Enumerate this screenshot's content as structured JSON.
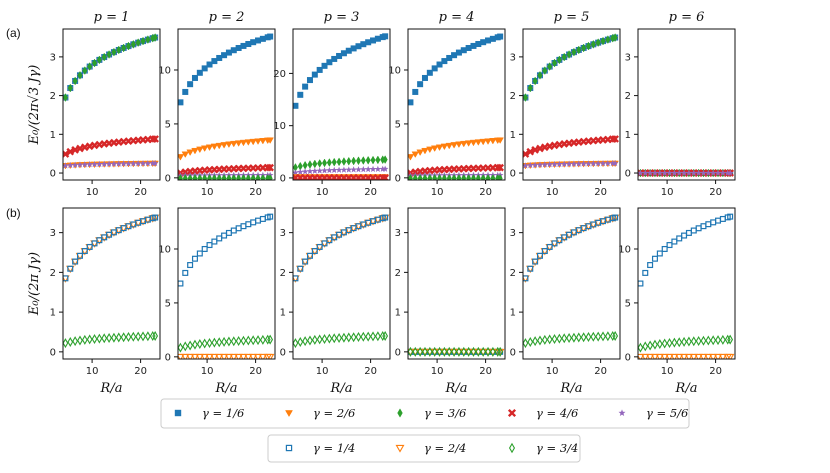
{
  "chart_data": {
    "type": "scatter",
    "row_labels": [
      "(a)",
      "(b)"
    ],
    "ylabels": [
      "E₀/(2π√3 Jγ)",
      "E₀/(2π Jγ)"
    ],
    "xlabel": "R/a",
    "x_range": [
      4,
      24
    ],
    "xticks": [
      10,
      20
    ],
    "styles": {
      "1/6": {
        "label": "γ = 1/6",
        "color": "#1f77b4",
        "marker": "square-filled"
      },
      "2/6": {
        "label": "γ = 2/6",
        "color": "#ff7f0e",
        "marker": "triangle-down-filled"
      },
      "3/6": {
        "label": "γ = 3/6",
        "color": "#2ca02c",
        "marker": "diamond-filled"
      },
      "4/6": {
        "label": "γ = 4/6",
        "color": "#d62728",
        "marker": "x-filled"
      },
      "5/6": {
        "label": "γ = 5/6",
        "color": "#9467bd",
        "marker": "star"
      },
      "1/4": {
        "label": "γ = 1/4",
        "color": "#1f77b4",
        "marker": "square-open"
      },
      "2/4": {
        "label": "γ = 2/4",
        "color": "#ff7f0e",
        "marker": "triangle-down-open"
      },
      "3/4": {
        "label": "γ = 3/4",
        "color": "#2ca02c",
        "marker": "diamond-open"
      }
    },
    "legend_rows": [
      [
        "1/6",
        "2/6",
        "3/6",
        "4/6",
        "5/6"
      ],
      [
        "1/4",
        "2/4",
        "3/4"
      ]
    ],
    "x": [
      4.5,
      5.5,
      6.5,
      7.5,
      8.5,
      9.5,
      10.5,
      11.5,
      12.5,
      13.5,
      14.5,
      15.5,
      16.5,
      17.5,
      18.5,
      19.5,
      20.5,
      21.5,
      22.5,
      23
    ],
    "shape": "logarithmic",
    "panels": [
      {
        "row": 0,
        "title": "p = 1",
        "ylim": [
          -0.18,
          3.72
        ],
        "yticks": [
          0,
          1,
          2,
          3
        ],
        "series": [
          {
            "gamma": "1/6",
            "y0": 1.95,
            "y1": 3.5
          },
          {
            "gamma": "5/6",
            "y0": 1.95,
            "y1": 3.5
          },
          {
            "gamma": "3/6",
            "y0": 1.95,
            "y1": 3.5
          },
          {
            "gamma": "4/6",
            "y0": 0.49,
            "y1": 0.88
          },
          {
            "gamma": "2/6",
            "y0": 0.19,
            "y1": 0.25
          },
          {
            "gamma": "5/6",
            "y0": 0.19,
            "y1": 0.25
          }
        ]
      },
      {
        "row": 0,
        "title": "p = 2",
        "ylim": [
          -0.2,
          13.8
        ],
        "yticks": [
          0,
          5,
          10
        ],
        "series": [
          {
            "gamma": "1/6",
            "y0": 7.0,
            "y1": 13.1
          },
          {
            "gamma": "2/6",
            "y0": 1.95,
            "y1": 3.5
          },
          {
            "gamma": "4/6",
            "y0": 0.45,
            "y1": 0.95
          },
          {
            "gamma": "5/6",
            "y0": 0.2,
            "y1": 0.25
          },
          {
            "gamma": "3/6",
            "y0": -0.05,
            "y1": -0.05
          }
        ]
      },
      {
        "row": 0,
        "title": "p = 3",
        "ylim": [
          -0.4,
          28.5
        ],
        "yticks": [
          0,
          10,
          20
        ],
        "series": [
          {
            "gamma": "1/6",
            "y0": 13.8,
            "y1": 27.1
          },
          {
            "gamma": "3/6",
            "y0": 2.0,
            "y1": 3.5
          },
          {
            "gamma": "5/6",
            "y0": 1.0,
            "y1": 1.7
          },
          {
            "gamma": "2/6",
            "y0": 0.2,
            "y1": 0.2
          },
          {
            "gamma": "4/6",
            "y0": 0.0,
            "y1": 0.0
          }
        ]
      },
      {
        "row": 0,
        "title": "p = 4",
        "ylim": [
          -0.2,
          13.8
        ],
        "yticks": [
          0,
          5,
          10
        ],
        "series": [
          {
            "gamma": "1/6",
            "y0": 7.0,
            "y1": 13.1
          },
          {
            "gamma": "2/6",
            "y0": 1.95,
            "y1": 3.5
          },
          {
            "gamma": "4/6",
            "y0": 0.45,
            "y1": 0.95
          },
          {
            "gamma": "5/6",
            "y0": 0.2,
            "y1": 0.25
          },
          {
            "gamma": "3/6",
            "y0": -0.05,
            "y1": -0.05
          }
        ]
      },
      {
        "row": 0,
        "title": "p = 5",
        "ylim": [
          -0.18,
          3.72
        ],
        "yticks": [
          0,
          1,
          2,
          3
        ],
        "series": [
          {
            "gamma": "1/6",
            "y0": 1.95,
            "y1": 3.5
          },
          {
            "gamma": "5/6",
            "y0": 1.95,
            "y1": 3.5
          },
          {
            "gamma": "3/6",
            "y0": 1.95,
            "y1": 3.5
          },
          {
            "gamma": "4/6",
            "y0": 0.49,
            "y1": 0.88
          },
          {
            "gamma": "2/6",
            "y0": 0.19,
            "y1": 0.25
          },
          {
            "gamma": "5/6",
            "y0": 0.19,
            "y1": 0.25
          }
        ]
      },
      {
        "row": 0,
        "title": "p = 6",
        "ylim": [
          -0.18,
          3.72
        ],
        "yticks": [
          0,
          1,
          2,
          3
        ],
        "series": [
          {
            "gamma": "1/6",
            "y0": 0.0,
            "y1": 0.0
          },
          {
            "gamma": "2/6",
            "y0": 0.0,
            "y1": 0.0
          },
          {
            "gamma": "3/6",
            "y0": 0.0,
            "y1": 0.0
          },
          {
            "gamma": "4/6",
            "y0": 0.0,
            "y1": 0.0
          },
          {
            "gamma": "5/6",
            "y0": 0.0,
            "y1": 0.0
          }
        ]
      },
      {
        "row": 1,
        "title": "",
        "ylim": [
          -0.18,
          3.62
        ],
        "yticks": [
          0,
          1,
          2,
          3
        ],
        "series": [
          {
            "gamma": "2/4",
            "y0": 1.85,
            "y1": 3.38
          },
          {
            "gamma": "1/4",
            "y0": 1.85,
            "y1": 3.38
          },
          {
            "gamma": "3/4",
            "y0": 0.22,
            "y1": 0.4
          }
        ]
      },
      {
        "row": 1,
        "title": "",
        "ylim": [
          -0.2,
          13.8
        ],
        "yticks": [
          0,
          5,
          10
        ],
        "series": [
          {
            "gamma": "1/4",
            "y0": 6.8,
            "y1": 13.0
          },
          {
            "gamma": "3/4",
            "y0": 0.85,
            "y1": 1.6
          },
          {
            "gamma": "2/4",
            "y0": 0.0,
            "y1": 0.0
          }
        ]
      },
      {
        "row": 1,
        "title": "",
        "ylim": [
          -0.18,
          3.62
        ],
        "yticks": [
          0,
          1,
          2,
          3
        ],
        "series": [
          {
            "gamma": "2/4",
            "y0": 1.85,
            "y1": 3.38
          },
          {
            "gamma": "1/4",
            "y0": 1.85,
            "y1": 3.38
          },
          {
            "gamma": "3/4",
            "y0": 0.22,
            "y1": 0.4
          }
        ]
      },
      {
        "row": 1,
        "title": "",
        "ylim": [
          -0.18,
          3.62
        ],
        "yticks": [
          0,
          1,
          2,
          3
        ],
        "series": [
          {
            "gamma": "1/4",
            "y0": 0.0,
            "y1": 0.0
          },
          {
            "gamma": "2/4",
            "y0": 0.0,
            "y1": 0.0
          },
          {
            "gamma": "3/4",
            "y0": 0.0,
            "y1": 0.0
          }
        ]
      },
      {
        "row": 1,
        "title": "",
        "ylim": [
          -0.18,
          3.62
        ],
        "yticks": [
          0,
          1,
          2,
          3
        ],
        "series": [
          {
            "gamma": "2/4",
            "y0": 1.85,
            "y1": 3.38
          },
          {
            "gamma": "1/4",
            "y0": 1.85,
            "y1": 3.38
          },
          {
            "gamma": "3/4",
            "y0": 0.22,
            "y1": 0.4
          }
        ]
      },
      {
        "row": 1,
        "title": "",
        "ylim": [
          -0.2,
          13.8
        ],
        "yticks": [
          0,
          5,
          10
        ],
        "series": [
          {
            "gamma": "1/4",
            "y0": 6.8,
            "y1": 13.0
          },
          {
            "gamma": "3/4",
            "y0": 0.85,
            "y1": 1.6
          },
          {
            "gamma": "2/4",
            "y0": 0.0,
            "y1": 0.0
          }
        ]
      }
    ]
  }
}
